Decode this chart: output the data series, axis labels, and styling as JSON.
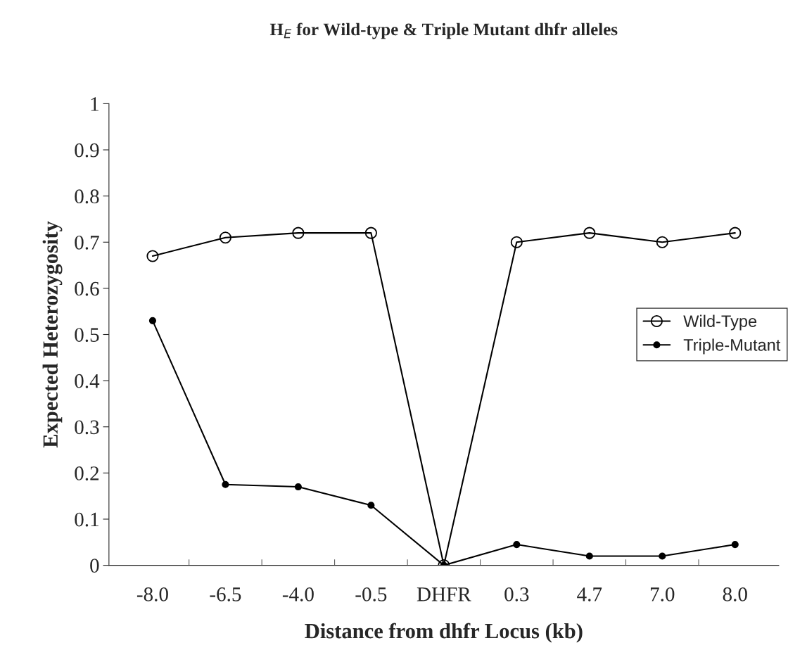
{
  "chart_data": {
    "type": "line",
    "title": "H$_{E}$ for Wild-type & Triple Mutant dhfr alleles",
    "xlabel": "Distance from dhfr Locus (kb)",
    "ylabel": "Expected Heterozygosity",
    "categories": [
      "-8.0",
      "-6.5",
      "-4.0",
      "-0.5",
      "DHFR",
      "0.3",
      "4.7",
      "7.0",
      "8.0"
    ],
    "series": [
      {
        "name": "Wild-Type",
        "color": "#000000",
        "values": [
          0.67,
          0.71,
          0.72,
          0.72,
          0,
          0.7,
          0.72,
          0.7,
          0.72
        ]
      },
      {
        "name": "Triple-Mutant",
        "color": "#000000",
        "values": [
          0.53,
          0.175,
          0.17,
          0.13,
          0,
          0.045,
          0.02,
          0.02,
          0.045
        ]
      }
    ],
    "ylim": [
      0,
      1
    ],
    "yticks": [
      0,
      0.1,
      0.2,
      0.3,
      0.4,
      0.5,
      0.6,
      0.7,
      0.8,
      0.9,
      1
    ],
    "marker": "circle",
    "legend": "right",
    "grid": false
  }
}
